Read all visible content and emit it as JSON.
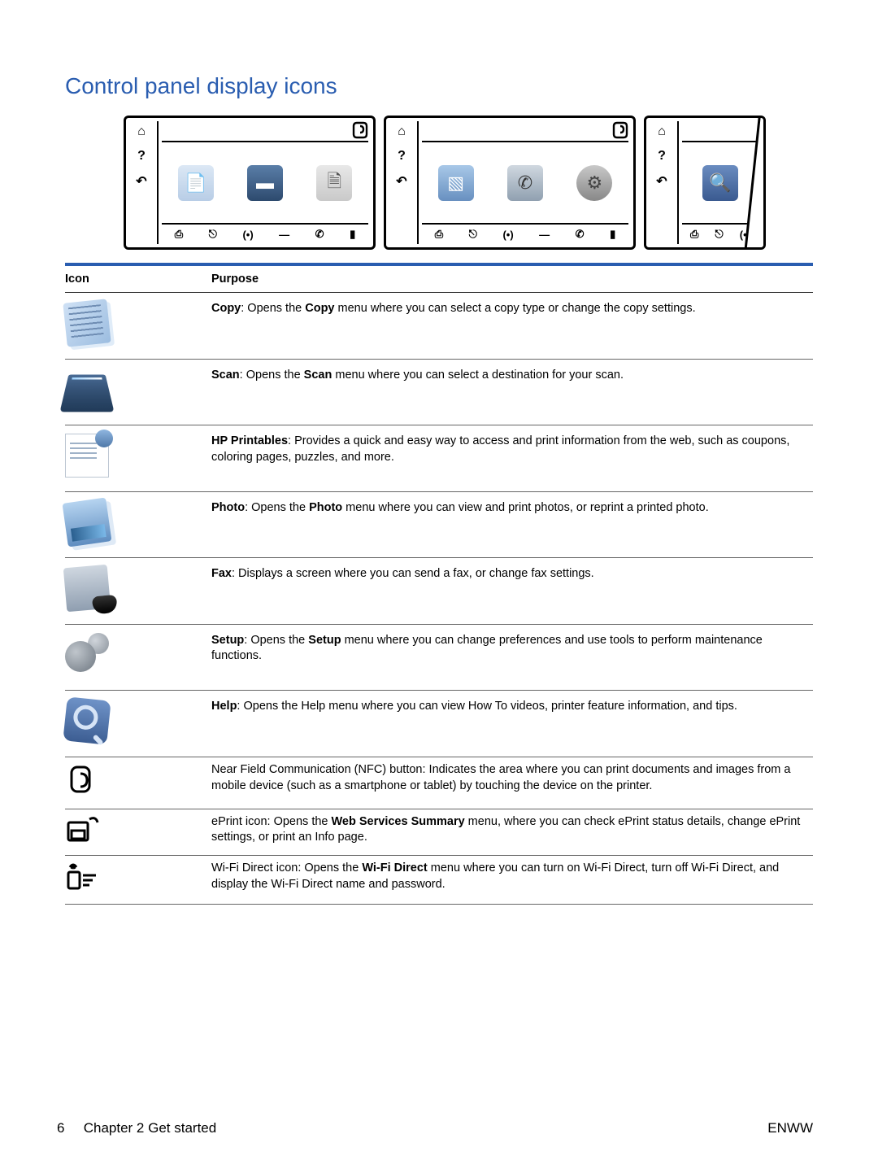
{
  "title": "Control panel display icons",
  "table": {
    "headers": {
      "icon": "Icon",
      "purpose": "Purpose"
    },
    "rows": [
      {
        "icon": "copy",
        "bold": "Copy",
        "before": "",
        "after": ": Opens the ",
        "bold2": "Copy",
        "after2": " menu where you can select a copy type or change the copy settings."
      },
      {
        "icon": "scan",
        "bold": "Scan",
        "before": "",
        "after": ": Opens the ",
        "bold2": "Scan",
        "after2": " menu where you can select a destination for your scan."
      },
      {
        "icon": "printables",
        "bold": "HP Printables",
        "before": "",
        "after": ": Provides a quick and easy way to access and print information from the web, such as coupons, coloring pages, puzzles, and more.",
        "bold2": "",
        "after2": ""
      },
      {
        "icon": "photo",
        "bold": "Photo",
        "before": "",
        "after": ": Opens the ",
        "bold2": "Photo",
        "after2": " menu where you can view and print photos, or reprint a printed photo."
      },
      {
        "icon": "fax",
        "bold": "Fax",
        "before": "",
        "after": ": Displays a screen where you can send a fax, or change fax settings.",
        "bold2": "",
        "after2": ""
      },
      {
        "icon": "setup",
        "bold": "Setup",
        "before": "",
        "after": ": Opens the ",
        "bold2": "Setup",
        "after2": " menu where you can change preferences and use tools to perform maintenance functions."
      },
      {
        "icon": "help",
        "bold": "Help",
        "before": "",
        "after": ": Opens the Help menu where you can view How To videos, printer feature information, and tips.",
        "bold2": "",
        "after2": ""
      },
      {
        "icon": "nfc",
        "bold": "",
        "before": "Near Field Communication (NFC) button: Indicates the area where you can print documents and images from a mobile device (such as a smartphone or tablet) by touching the device on the printer.",
        "after": "",
        "bold2": "",
        "after2": ""
      },
      {
        "icon": "eprint",
        "bold": "",
        "before": "ePrint icon: Opens the ",
        "after": "",
        "bold2": "Web Services Summary",
        "after2": " menu, where you can check ePrint status details, change ePrint settings, or print an Info page."
      },
      {
        "icon": "wifidirect",
        "bold": "",
        "before": "Wi-Fi Direct icon: Opens the ",
        "after": "",
        "bold2": "Wi-Fi Direct",
        "after2": " menu where you can turn on Wi-Fi Direct, turn off Wi-Fi Direct, and display the Wi-Fi Direct name and password."
      }
    ]
  },
  "footer": {
    "page": "6",
    "chapter": "Chapter 2   Get started",
    "lang": "ENWW"
  },
  "colors": {
    "heading": "#2a5db0",
    "rule": "#2a5db0",
    "text": "#000000",
    "row_border": "#666666"
  }
}
